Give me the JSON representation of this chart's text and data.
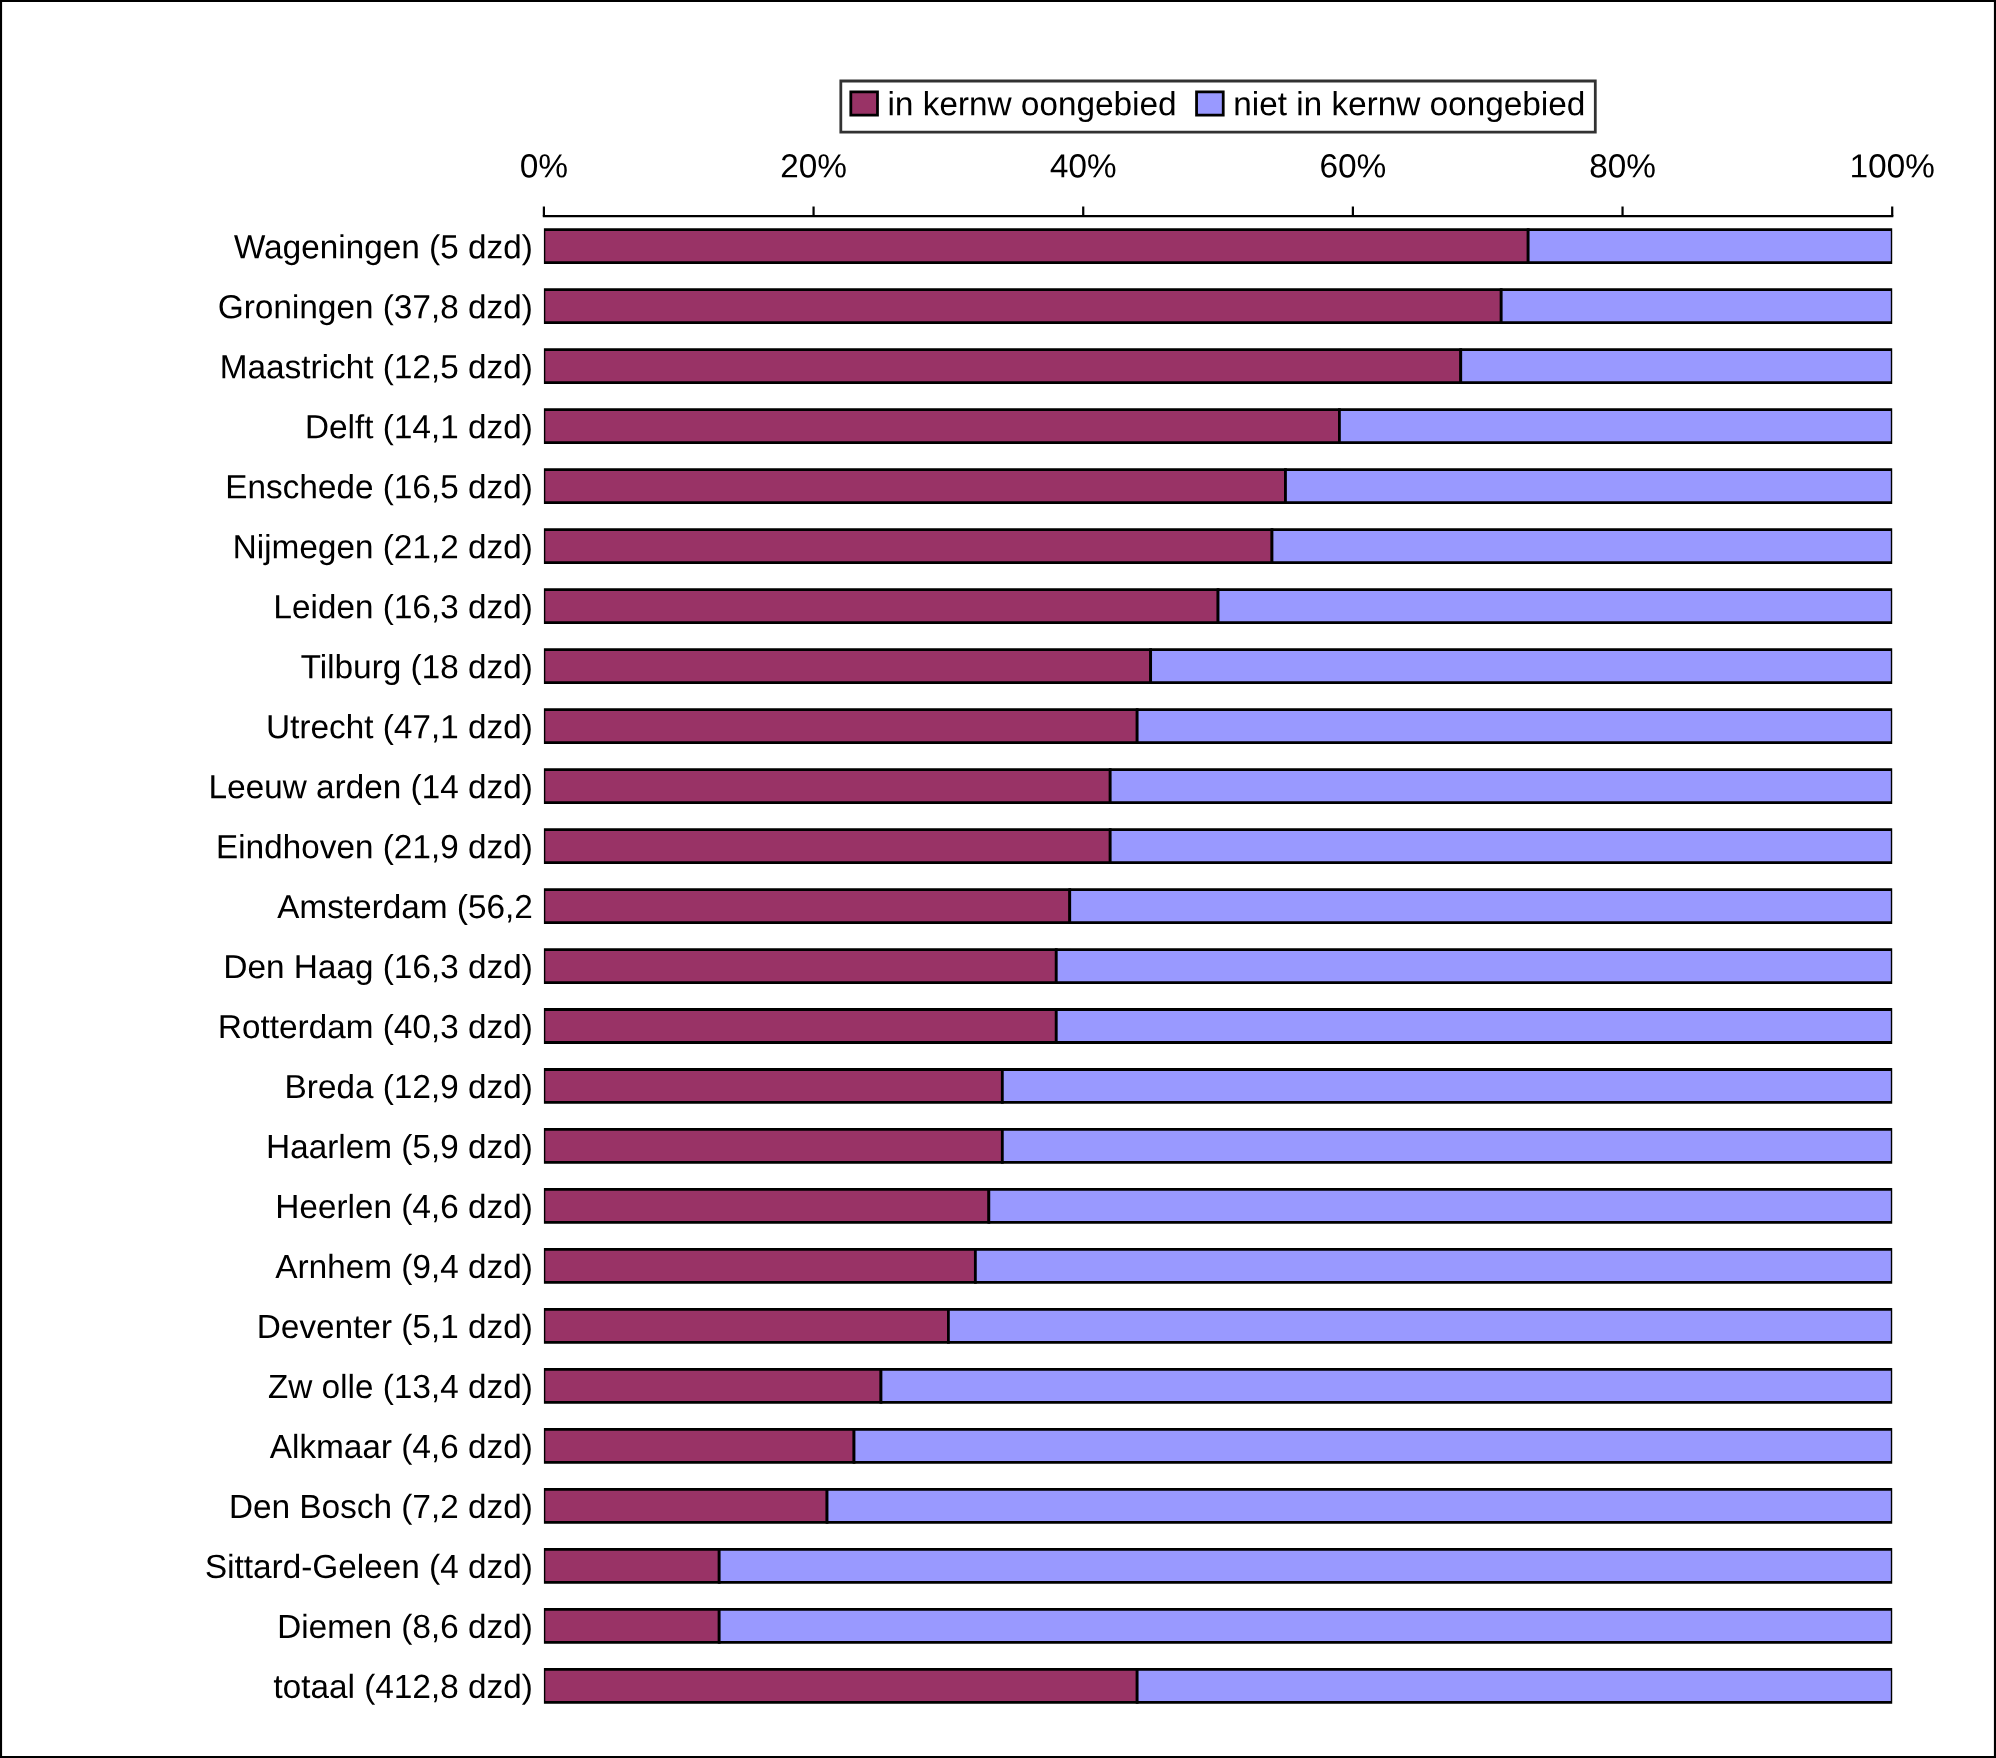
{
  "chart_data": {
    "type": "bar",
    "orientation": "horizontal",
    "stacked": true,
    "categories": [
      "Wageningen (5 dzd)",
      "Groningen (37,8 dzd)",
      "Maastricht (12,5 dzd)",
      "Delft (14,1 dzd)",
      "Enschede (16,5 dzd)",
      "Nijmegen (21,2 dzd)",
      "Leiden (16,3 dzd)",
      "Tilburg (18 dzd)",
      "Utrecht (47,1 dzd)",
      "Leeuw arden (14 dzd)",
      "Eindhoven (21,9 dzd)",
      "Amsterdam (56,2",
      "Den Haag (16,3 dzd)",
      "Rotterdam (40,3 dzd)",
      "Breda (12,9 dzd)",
      "Haarlem (5,9 dzd)",
      "Heerlen (4,6 dzd)",
      "Arnhem (9,4 dzd)",
      "Deventer (5,1 dzd)",
      "Zw olle (13,4 dzd)",
      "Alkmaar (4,6 dzd)",
      "Den Bosch (7,2 dzd)",
      "Sittard-Geleen (4 dzd)",
      "Diemen (8,6 dzd)",
      "totaal (412,8 dzd)"
    ],
    "series": [
      {
        "name": "in kernw oongebied",
        "color": "#993366",
        "values": [
          73,
          71,
          68,
          59,
          55,
          54,
          50,
          45,
          44,
          42,
          42,
          39,
          38,
          38,
          34,
          34,
          33,
          32,
          30,
          25,
          23,
          21,
          13,
          13,
          44
        ]
      },
      {
        "name": "niet in kernw oongebied",
        "color": "#9999ff",
        "values": [
          27,
          29,
          32,
          41,
          45,
          46,
          50,
          55,
          56,
          58,
          58,
          61,
          62,
          62,
          66,
          66,
          67,
          68,
          70,
          75,
          77,
          79,
          87,
          87,
          56
        ]
      }
    ],
    "xlim": [
      0,
      100
    ],
    "xticks": [
      {
        "value": 0,
        "label": "0%"
      },
      {
        "value": 20,
        "label": "20%"
      },
      {
        "value": 40,
        "label": "40%"
      },
      {
        "value": 60,
        "label": "60%"
      },
      {
        "value": 80,
        "label": "80%"
      },
      {
        "value": 100,
        "label": "100%"
      }
    ],
    "grid": false,
    "legend": "top"
  }
}
